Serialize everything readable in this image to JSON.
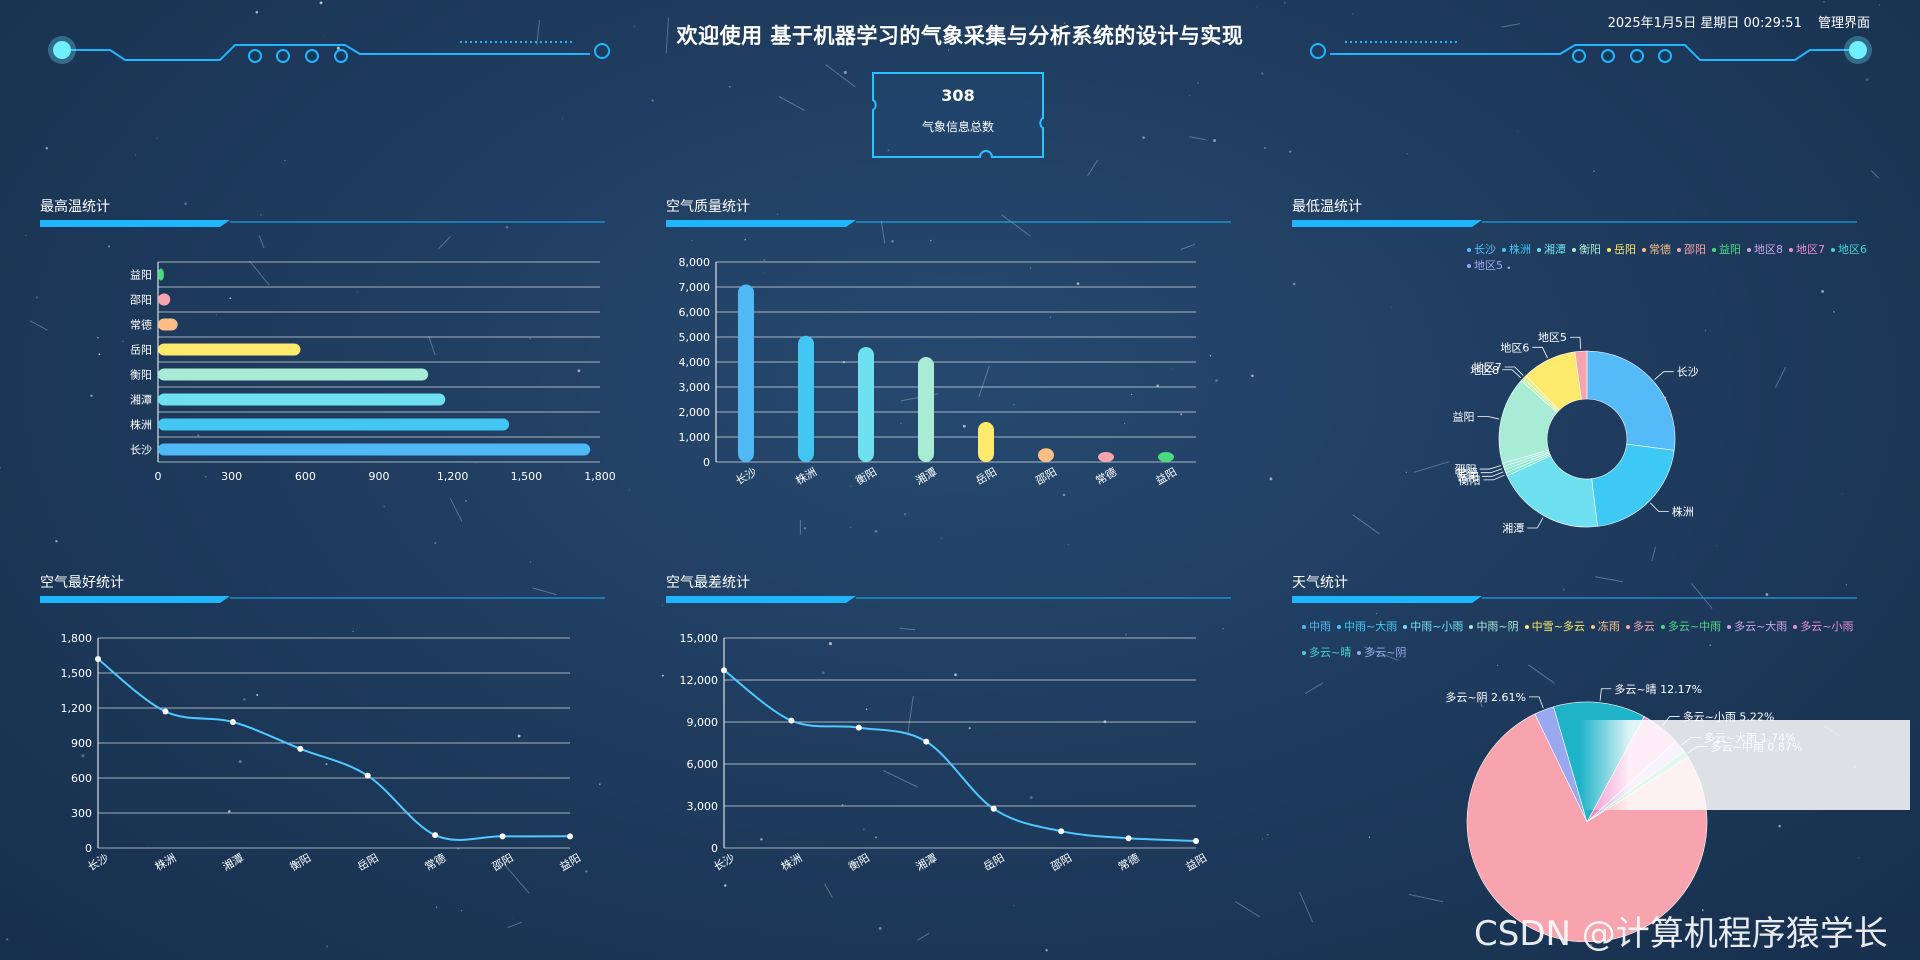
{
  "header": {
    "title": "欢迎使用 基于机器学习的气象采集与分析系统的设计与实现",
    "datetime": "2025年1月5日 星期日 00:29:51",
    "admin_link": "管理界面"
  },
  "summary": {
    "value": "308",
    "label": "气象信息总数"
  },
  "watermark": "CSDN @计算机程序猿学长",
  "colors": {
    "accent": "#1fb5ff",
    "line": "#4fc9ff",
    "grid": "#ffffff"
  },
  "panels": {
    "max_temp": {
      "title": "最高温统计"
    },
    "air_quality": {
      "title": "空气质量统计"
    },
    "min_temp": {
      "title": "最低温统计"
    },
    "air_best": {
      "title": "空气最好统计"
    },
    "air_worst": {
      "title": "空气最差统计"
    },
    "weather": {
      "title": "天气统计"
    }
  },
  "chart_data": [
    {
      "id": "max_temp",
      "type": "bar",
      "orientation": "horizontal",
      "categories": [
        "长沙",
        "株洲",
        "湘潭",
        "衡阳",
        "岳阳",
        "常德",
        "邵阳",
        "益阳"
      ],
      "values": [
        1760,
        1430,
        1170,
        1100,
        580,
        80,
        50,
        10
      ],
      "colors": [
        "#4fb8f5",
        "#43c7f2",
        "#6fe0f0",
        "#a8ecd6",
        "#fde96b",
        "#fbbf86",
        "#f7a4ae",
        "#4cd97f"
      ],
      "xlim": [
        0,
        1800
      ],
      "xticks": [
        "0",
        "300",
        "600",
        "900",
        "1,200",
        "1,500",
        "1,800"
      ]
    },
    {
      "id": "air_quality",
      "type": "bar",
      "categories": [
        "长沙",
        "株洲",
        "衡阳",
        "湘潭",
        "岳阳",
        "邵阳",
        "常德",
        "益阳"
      ],
      "values": [
        7100,
        5050,
        4600,
        4200,
        1600,
        550,
        300,
        200
      ],
      "colors": [
        "#4fb8f5",
        "#43c7f2",
        "#6fe0f0",
        "#a8ecd6",
        "#fde96b",
        "#fbbf86",
        "#f7a4ae",
        "#4cd97f"
      ],
      "ylim": [
        0,
        8000
      ],
      "yticks": [
        "0",
        "1,000",
        "2,000",
        "3,000",
        "4,000",
        "5,000",
        "6,000",
        "7,000",
        "8,000"
      ]
    },
    {
      "id": "min_temp",
      "type": "pie",
      "style": "donut",
      "legend": [
        "长沙",
        "株洲",
        "湘潭",
        "衡阳",
        "岳阳",
        "常德",
        "邵阳",
        "益阳",
        "地区8",
        "地区7",
        "地区6",
        "地区5"
      ],
      "legend_colors": [
        "#55bbf8",
        "#3ec8f4",
        "#6fe0f0",
        "#a8ecd6",
        "#fde96b",
        "#fbbf86",
        "#f7a4ae",
        "#4cd97f",
        "#c9a6e8",
        "#e98dd8",
        "#45d3d3",
        "#9aa8f0"
      ],
      "slices": [
        {
          "label": "长沙",
          "value": 27,
          "color": "#55bbf8"
        },
        {
          "label": "株洲",
          "value": 21,
          "color": "#3ec8f4"
        },
        {
          "label": "湘潭",
          "value": 20,
          "color": "#6fe0f0"
        },
        {
          "label": "衡阳",
          "value": 0.6,
          "color": "#7fe6d0"
        },
        {
          "label": "岳阳",
          "value": 0.6,
          "color": "#8fe8d4"
        },
        {
          "label": "常德",
          "value": 0.6,
          "color": "#9aebd8"
        },
        {
          "label": "邵阳",
          "value": 0.6,
          "color": "#a0ecd8"
        },
        {
          "label": "益阳",
          "value": 16,
          "color": "#a8ecd6"
        },
        {
          "label": "地区8",
          "value": 0.6,
          "color": "#c9f0a0"
        },
        {
          "label": "地区7",
          "value": 0.6,
          "color": "#e4ef82"
        },
        {
          "label": "地区6",
          "value": 10,
          "color": "#fde96b"
        },
        {
          "label": "地区5",
          "value": 2.2,
          "color": "#f7a4ae"
        }
      ]
    },
    {
      "id": "air_best",
      "type": "line",
      "smooth": true,
      "categories": [
        "长沙",
        "株洲",
        "湘潭",
        "衡阳",
        "岳阳",
        "常德",
        "邵阳",
        "益阳"
      ],
      "values": [
        1620,
        1170,
        1080,
        850,
        620,
        110,
        100,
        100
      ],
      "ylim": [
        0,
        1800
      ],
      "yticks": [
        "0",
        "300",
        "600",
        "900",
        "1,200",
        "1,500",
        "1,800"
      ]
    },
    {
      "id": "air_worst",
      "type": "line",
      "smooth": true,
      "categories": [
        "长沙",
        "株洲",
        "衡阳",
        "湘潭",
        "岳阳",
        "邵阳",
        "常德",
        "益阳"
      ],
      "values": [
        12700,
        9100,
        8600,
        7600,
        2800,
        1200,
        700,
        500
      ],
      "ylim": [
        0,
        15000
      ],
      "yticks": [
        "0",
        "3,000",
        "6,000",
        "9,000",
        "12,000",
        "15,000"
      ]
    },
    {
      "id": "weather",
      "type": "pie",
      "legend": [
        "中雨",
        "中雨~大雨",
        "中雨~小雨",
        "中雨~阴",
        "中雪~多云",
        "冻雨",
        "多云",
        "多云~中雨",
        "多云~大雨",
        "多云~小雨",
        "多云~晴",
        "多云~阴"
      ],
      "legend_colors": [
        "#4fb8f5",
        "#3ec8f4",
        "#6fe0f0",
        "#a8ecd6",
        "#fde96b",
        "#fbbf86",
        "#f7a4ae",
        "#4cd97f",
        "#c9a6e8",
        "#e98dd8",
        "#45d3d3",
        "#9aa8f0"
      ],
      "slices": [
        {
          "label": "多云~阴 2.61%",
          "value": 2.61,
          "color": "#9aa8f0"
        },
        {
          "label": "多云~晴 12.17%",
          "value": 12.17,
          "color": "#1fb3c8"
        },
        {
          "label": "多云~小雨 5.22%",
          "value": 5.22,
          "color": "#f08bc9"
        },
        {
          "label": "多云~大雨 1.74%",
          "value": 1.74,
          "color": "#c9a6e8"
        },
        {
          "label": "多云~中雨 0.87%",
          "value": 0.87,
          "color": "#4cd97f"
        },
        {
          "label": "",
          "value": 75.39,
          "color": "#f7a4ae"
        }
      ]
    }
  ]
}
